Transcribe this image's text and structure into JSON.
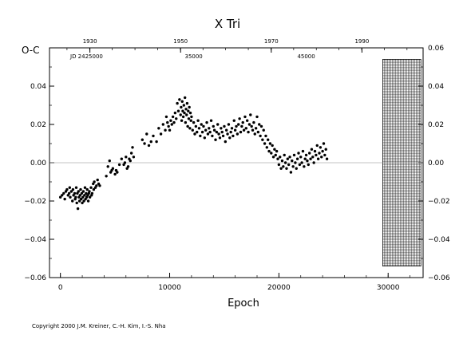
{
  "copyright": "Copyright 2000 J.M. Kreiner, C.-H. Kim, I.-S. Nha",
  "chart_data": {
    "type": "scatter",
    "title": "X Tri",
    "xlabel": "Epoch",
    "ylabel": "O-C",
    "xlim": [
      -1000,
      33200
    ],
    "ylim": [
      -0.06,
      0.06
    ],
    "x_ticks": [
      "0",
      "10000",
      "20000",
      "30000"
    ],
    "y_ticks_left": [
      "−0.06",
      "−0.04",
      "−0.02",
      "0.00",
      "0.02",
      "0.04"
    ],
    "y_ticks_right": [
      "−0.06",
      "−0.04",
      "−0.02",
      "0.00",
      "0.02",
      "0.04",
      "0.06"
    ],
    "top_axis_years": [
      "1930",
      "1950",
      "1970",
      "1990"
    ],
    "jd_label": "JD 2425000",
    "jd_ticks": [
      "35000",
      "45000"
    ],
    "grid": false,
    "zero_line": true,
    "points": [
      [
        0,
        -0.018
      ],
      [
        150,
        -0.017
      ],
      [
        300,
        -0.016
      ],
      [
        400,
        -0.019
      ],
      [
        500,
        -0.015
      ],
      [
        600,
        -0.014
      ],
      [
        700,
        -0.017
      ],
      [
        800,
        -0.016
      ],
      [
        850,
        -0.013
      ],
      [
        900,
        -0.018
      ],
      [
        1000,
        -0.015
      ],
      [
        1100,
        -0.02
      ],
      [
        1150,
        -0.014
      ],
      [
        1200,
        -0.017
      ],
      [
        1300,
        -0.016
      ],
      [
        1350,
        -0.019
      ],
      [
        1400,
        -0.018
      ],
      [
        1450,
        -0.013
      ],
      [
        1500,
        -0.021
      ],
      [
        1550,
        -0.016
      ],
      [
        1600,
        -0.024
      ],
      [
        1650,
        -0.015
      ],
      [
        1700,
        -0.018
      ],
      [
        1750,
        -0.02
      ],
      [
        1800,
        -0.017
      ],
      [
        1850,
        -0.014
      ],
      [
        1900,
        -0.019
      ],
      [
        1950,
        -0.016
      ],
      [
        2000,
        -0.021
      ],
      [
        2050,
        -0.018
      ],
      [
        2100,
        -0.015
      ],
      [
        2150,
        -0.02
      ],
      [
        2200,
        -0.017
      ],
      [
        2250,
        -0.013
      ],
      [
        2300,
        -0.019
      ],
      [
        2350,
        -0.016
      ],
      [
        2400,
        -0.018
      ],
      [
        2450,
        -0.014
      ],
      [
        2500,
        -0.017
      ],
      [
        2550,
        -0.02
      ],
      [
        2600,
        -0.016
      ],
      [
        2650,
        -0.015
      ],
      [
        2700,
        -0.018
      ],
      [
        2800,
        -0.013
      ],
      [
        2850,
        -0.017
      ],
      [
        2900,
        -0.016
      ],
      [
        3000,
        -0.011
      ],
      [
        3050,
        -0.014
      ],
      [
        3100,
        -0.01
      ],
      [
        3200,
        -0.013
      ],
      [
        3300,
        -0.012
      ],
      [
        3400,
        -0.009
      ],
      [
        3500,
        -0.011
      ],
      [
        3600,
        -0.012
      ],
      [
        4200,
        -0.007
      ],
      [
        4350,
        -0.002
      ],
      [
        4500,
        0.001
      ],
      [
        4600,
        -0.005
      ],
      [
        4700,
        -0.004
      ],
      [
        4800,
        -0.003
      ],
      [
        5000,
        -0.006
      ],
      [
        5100,
        -0.004
      ],
      [
        5200,
        -0.005
      ],
      [
        5400,
        -0.001
      ],
      [
        5600,
        0.002
      ],
      [
        5800,
        -0.001
      ],
      [
        5900,
        0.0
      ],
      [
        6000,
        0.003
      ],
      [
        6100,
        -0.003
      ],
      [
        6200,
        -0.002
      ],
      [
        6300,
        0.002
      ],
      [
        6400,
        0.001
      ],
      [
        6500,
        0.005
      ],
      [
        6600,
        0.008
      ],
      [
        6700,
        0.003
      ],
      [
        7500,
        0.012
      ],
      [
        7700,
        0.01
      ],
      [
        7900,
        0.015
      ],
      [
        8100,
        0.009
      ],
      [
        8300,
        0.011
      ],
      [
        8500,
        0.014
      ],
      [
        8800,
        0.011
      ],
      [
        9000,
        0.018
      ],
      [
        9200,
        0.015
      ],
      [
        9400,
        0.02
      ],
      [
        9600,
        0.017
      ],
      [
        9700,
        0.024
      ],
      [
        9800,
        0.021
      ],
      [
        9900,
        0.019
      ],
      [
        10000,
        0.017
      ],
      [
        10100,
        0.022
      ],
      [
        10200,
        0.02
      ],
      [
        10300,
        0.024
      ],
      [
        10400,
        0.021
      ],
      [
        10500,
        0.026
      ],
      [
        10600,
        0.023
      ],
      [
        10700,
        0.031
      ],
      [
        10800,
        0.027
      ],
      [
        10900,
        0.033
      ],
      [
        11000,
        0.025
      ],
      [
        11050,
        0.029
      ],
      [
        11100,
        0.022
      ],
      [
        11150,
        0.032
      ],
      [
        11200,
        0.027
      ],
      [
        11250,
        0.024
      ],
      [
        11300,
        0.03
      ],
      [
        11350,
        0.026
      ],
      [
        11400,
        0.034
      ],
      [
        11450,
        0.021
      ],
      [
        11500,
        0.028
      ],
      [
        11550,
        0.025
      ],
      [
        11600,
        0.031
      ],
      [
        11650,
        0.019
      ],
      [
        11700,
        0.027
      ],
      [
        11750,
        0.023
      ],
      [
        11800,
        0.029
      ],
      [
        11850,
        0.018
      ],
      [
        11900,
        0.026
      ],
      [
        11950,
        0.022
      ],
      [
        12000,
        0.024
      ],
      [
        12100,
        0.017
      ],
      [
        12200,
        0.021
      ],
      [
        12300,
        0.015
      ],
      [
        12400,
        0.019
      ],
      [
        12500,
        0.016
      ],
      [
        12600,
        0.022
      ],
      [
        12700,
        0.018
      ],
      [
        12800,
        0.014
      ],
      [
        12900,
        0.02
      ],
      [
        13000,
        0.016
      ],
      [
        13100,
        0.019
      ],
      [
        13200,
        0.013
      ],
      [
        13300,
        0.017
      ],
      [
        13400,
        0.021
      ],
      [
        13500,
        0.015
      ],
      [
        13600,
        0.018
      ],
      [
        13700,
        0.016
      ],
      [
        13800,
        0.022
      ],
      [
        13900,
        0.014
      ],
      [
        14000,
        0.019
      ],
      [
        14100,
        0.017
      ],
      [
        14200,
        0.012
      ],
      [
        14300,
        0.016
      ],
      [
        14400,
        0.02
      ],
      [
        14500,
        0.015
      ],
      [
        14600,
        0.013
      ],
      [
        14700,
        0.018
      ],
      [
        14800,
        0.016
      ],
      [
        14900,
        0.014
      ],
      [
        15000,
        0.019
      ],
      [
        15100,
        0.011
      ],
      [
        15200,
        0.017
      ],
      [
        15300,
        0.015
      ],
      [
        15400,
        0.02
      ],
      [
        15500,
        0.013
      ],
      [
        15600,
        0.016
      ],
      [
        15700,
        0.018
      ],
      [
        15800,
        0.014
      ],
      [
        15900,
        0.022
      ],
      [
        16000,
        0.017
      ],
      [
        16100,
        0.019
      ],
      [
        16200,
        0.015
      ],
      [
        16300,
        0.02
      ],
      [
        16400,
        0.023
      ],
      [
        16500,
        0.016
      ],
      [
        16600,
        0.019
      ],
      [
        16700,
        0.021
      ],
      [
        16800,
        0.017
      ],
      [
        16900,
        0.024
      ],
      [
        17000,
        0.018
      ],
      [
        17100,
        0.022
      ],
      [
        17200,
        0.016
      ],
      [
        17300,
        0.02
      ],
      [
        17400,
        0.025
      ],
      [
        17500,
        0.019
      ],
      [
        17600,
        0.017
      ],
      [
        17700,
        0.021
      ],
      [
        17800,
        0.015
      ],
      [
        17900,
        0.018
      ],
      [
        18000,
        0.024
      ],
      [
        18100,
        0.016
      ],
      [
        18200,
        0.02
      ],
      [
        18300,
        0.014
      ],
      [
        18400,
        0.019
      ],
      [
        18500,
        0.012
      ],
      [
        18600,
        0.017
      ],
      [
        18700,
        0.01
      ],
      [
        18800,
        0.014
      ],
      [
        18900,
        0.008
      ],
      [
        19000,
        0.012
      ],
      [
        19100,
        0.006
      ],
      [
        19200,
        0.01
      ],
      [
        19300,
        0.005
      ],
      [
        19400,
        0.009
      ],
      [
        19500,
        0.003
      ],
      [
        19600,
        0.007
      ],
      [
        19700,
        0.004
      ],
      [
        19800,
        0.006
      ],
      [
        19900,
        0.002
      ],
      [
        20000,
        -0.001
      ],
      [
        20100,
        0.003
      ],
      [
        20200,
        -0.003
      ],
      [
        20300,
        0.001
      ],
      [
        20400,
        -0.002
      ],
      [
        20500,
        0.004
      ],
      [
        20600,
        0.0
      ],
      [
        20700,
        -0.003
      ],
      [
        20800,
        0.002
      ],
      [
        20900,
        -0.001
      ],
      [
        21000,
        0.003
      ],
      [
        21100,
        -0.005
      ],
      [
        21200,
        0.001
      ],
      [
        21300,
        -0.002
      ],
      [
        21400,
        0.004
      ],
      [
        21500,
        0.0
      ],
      [
        21600,
        -0.003
      ],
      [
        21700,
        0.002
      ],
      [
        21800,
        0.005
      ],
      [
        21900,
        -0.001
      ],
      [
        22000,
        0.003
      ],
      [
        22100,
        0.0
      ],
      [
        22200,
        0.006
      ],
      [
        22300,
        -0.002
      ],
      [
        22400,
        0.002
      ],
      [
        22500,
        0.004
      ],
      [
        22600,
        0.001
      ],
      [
        22700,
        -0.001
      ],
      [
        22800,
        0.005
      ],
      [
        22900,
        0.002
      ],
      [
        23000,
        0.007
      ],
      [
        23100,
        0.003
      ],
      [
        23200,
        0.0
      ],
      [
        23300,
        0.006
      ],
      [
        23400,
        0.004
      ],
      [
        23500,
        0.009
      ],
      [
        23600,
        0.002
      ],
      [
        23700,
        0.005
      ],
      [
        23800,
        0.008
      ],
      [
        23900,
        0.003
      ],
      [
        24000,
        0.006
      ],
      [
        24100,
        0.01
      ],
      [
        24200,
        0.004
      ],
      [
        24300,
        0.007
      ],
      [
        24400,
        0.002
      ]
    ]
  }
}
